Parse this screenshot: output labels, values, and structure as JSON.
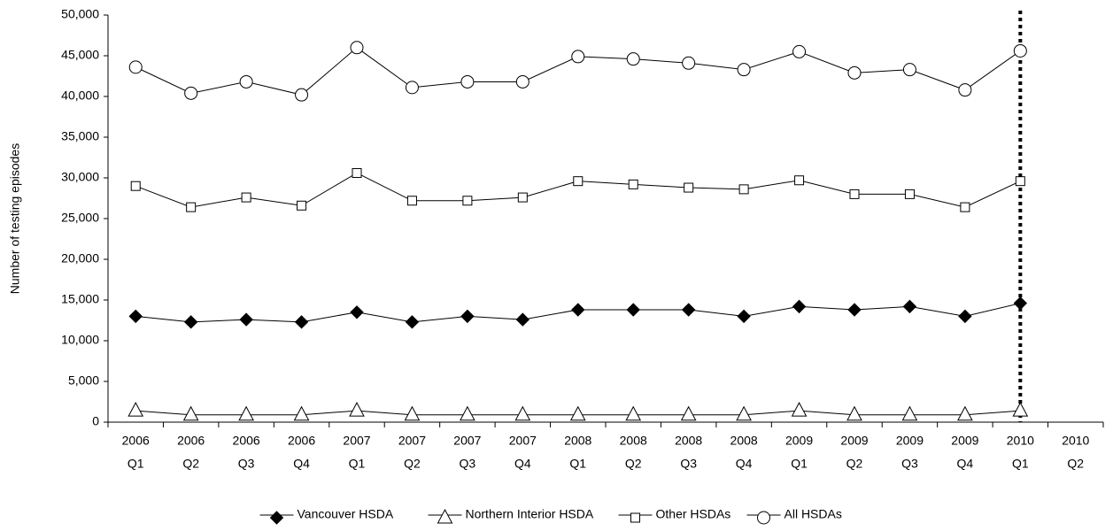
{
  "chart_data": {
    "type": "line",
    "y_label": "Number of testing episodes",
    "categories": [
      [
        "2006",
        "Q1"
      ],
      [
        "2006",
        "Q2"
      ],
      [
        "2006",
        "Q3"
      ],
      [
        "2006",
        "Q4"
      ],
      [
        "2007",
        "Q1"
      ],
      [
        "2007",
        "Q2"
      ],
      [
        "2007",
        "Q3"
      ],
      [
        "2007",
        "Q4"
      ],
      [
        "2008",
        "Q1"
      ],
      [
        "2008",
        "Q2"
      ],
      [
        "2008",
        "Q3"
      ],
      [
        "2008",
        "Q4"
      ],
      [
        "2009",
        "Q1"
      ],
      [
        "2009",
        "Q2"
      ],
      [
        "2009",
        "Q3"
      ],
      [
        "2009",
        "Q4"
      ],
      [
        "2010",
        "Q1"
      ],
      [
        "2010",
        "Q2"
      ]
    ],
    "series": [
      {
        "name": "Vancouver HSDA",
        "color": "#000000",
        "marker": "diamond",
        "values": [
          13000,
          12300,
          12600,
          12300,
          13500,
          12300,
          13000,
          12600,
          13800,
          13800,
          13800,
          13000,
          14200,
          13800,
          14200,
          13000,
          14600,
          null
        ]
      },
      {
        "name": "Northern Interior HSDA",
        "color": "#000000",
        "marker": "triangle",
        "values": [
          1400,
          900,
          900,
          900,
          1400,
          900,
          900,
          900,
          900,
          900,
          900,
          900,
          1400,
          900,
          900,
          900,
          1400,
          null
        ]
      },
      {
        "name": "Other HSDAs",
        "color": "#000000",
        "marker": "square",
        "values": [
          29000,
          26400,
          27600,
          26600,
          30600,
          27200,
          27200,
          27600,
          29600,
          29200,
          28800,
          28600,
          29700,
          28000,
          28000,
          26400,
          29600,
          null
        ]
      },
      {
        "name": "All HSDAs",
        "color": "#000000",
        "marker": "circle",
        "values": [
          43600,
          40400,
          41800,
          40200,
          46000,
          41100,
          41800,
          41800,
          44900,
          44600,
          44100,
          43300,
          45500,
          42900,
          43300,
          40800,
          45600,
          null
        ]
      }
    ],
    "ylim": [
      0,
      50000
    ],
    "yticks": [
      0,
      {
        "value": 5000,
        "label": "5,000"
      },
      {
        "value": 10000,
        "label": "10,000"
      },
      {
        "value": 15000,
        "label": "15,000"
      },
      {
        "value": 20000,
        "label": "20,000"
      },
      {
        "value": 25000,
        "label": "25,000"
      },
      {
        "value": 30000,
        "label": "30,000"
      },
      {
        "value": 35000,
        "label": "35,000"
      },
      {
        "value": 40000,
        "label": "40,000"
      },
      {
        "value": 45000,
        "label": "45,000"
      },
      {
        "value": 50000,
        "label": "50,000"
      }
    ],
    "grid": false,
    "legend": "bottom"
  }
}
